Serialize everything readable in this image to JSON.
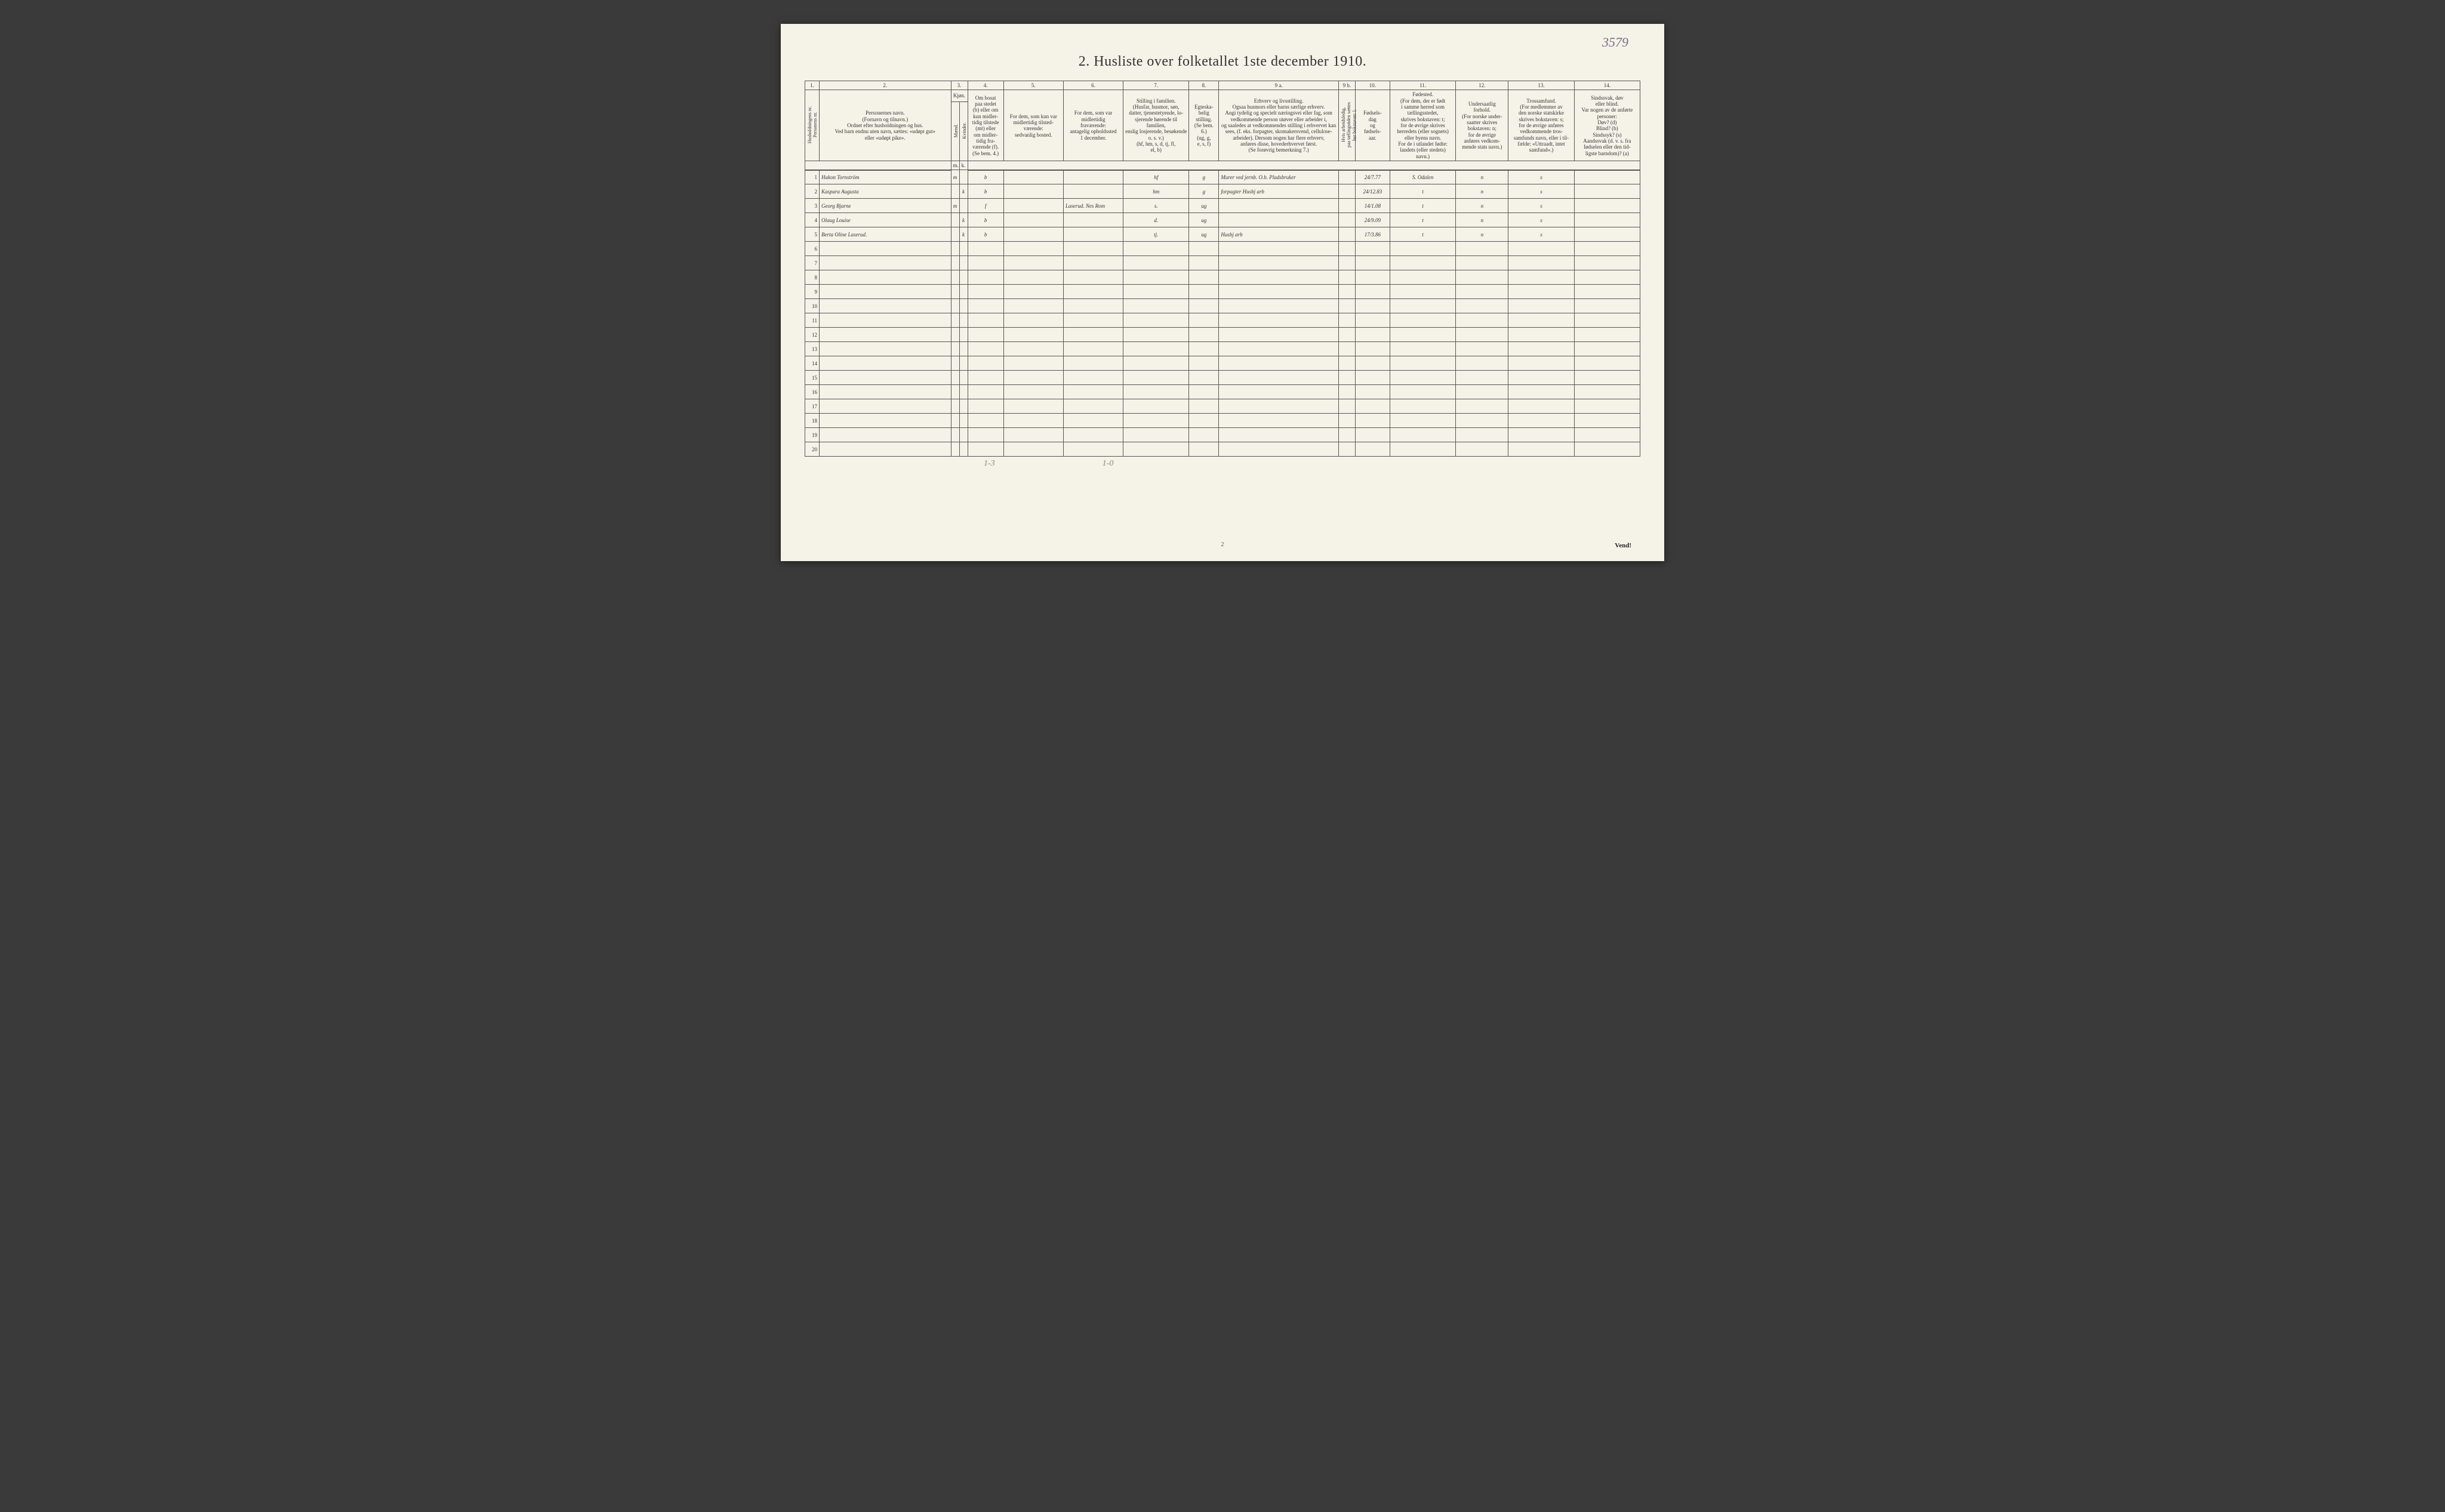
{
  "corner_note": "3579",
  "title": "2.  Husliste over folketallet 1ste december 1910.",
  "col_numbers": [
    "1.",
    "2.",
    "3.",
    "4.",
    "5.",
    "6.",
    "7.",
    "8.",
    "9 a.",
    "9 b.",
    "10.",
    "11.",
    "12.",
    "13.",
    "14."
  ],
  "headers": {
    "c1": "Husholdningens nr.\nPersonens nr.",
    "c2": "Personernes navn.\n(Fornavn og tilnavn.)\nOrdnet efter husholdningen og hus.\nVed barn endnu uten navn, sættes: «udøpt gut»\neller «udøpt pike».",
    "c3": "Kjøn.",
    "c3a": "Mænd.",
    "c3b": "Kvinder.",
    "c4": "Om bosat\npaa stedet\n(b) eller om\nkun midler-\ntidig tilstede\n(mt) eller\nom midler-\ntidig fra-\nværende (f).\n(Se bem. 4.)",
    "c5": "For dem, som kun var\nmidlertidig tilsted-\nværende:\nsedvanlig bosted.",
    "c6": "For dem, som var\nmidlertidig\nfraværende:\nantagelig opholdssted\n1 december.",
    "c7": "Stilling i familien.\n(Husfar, husmor, søn,\ndatter, tjenestetyende, lo-\nsjerende hørende til familien,\nenslig losjerende, besøkende\no. s. v.)\n(hf, hm, s, d, tj, fl,\nel, b)",
    "c8": "Egteska-\nbelig\nstilling.\n(Se bem. 6.)\n(ug, g,\ne, s, f)",
    "c9a": "Erhverv og livsstilling.\nOgsaa husmors eller barns særlige erhverv.\nAngi tydelig og specielt næringsvei eller fag, som\nvedkommende person utøver eller arbeider i,\nog saaledes at vedkommendes stilling i erhvervet kan\nsees, (f. eks. forpagter, skomakersvend, cellulose-\narbeider). Dersom nogen har flere erhverv,\nanføres disse, hovederhvervet først.\n(Se forøvrig bemerkning 7.)",
    "c9b": "Hvis arbeidsledig,\npaa tællingstiden sættes\nher bokstaven: l.",
    "c10": "Fødsels-\ndag\nog\nfødsels-\naar.",
    "c11": "Fødested.\n(For dem, der er født\ni samme herred som\ntællingsstedet,\nskrives bokstaven: t;\nfor de øvrige skrives\nherredets (eller sognets)\neller byens navn.\nFor de i utlandet fødte:\nlandets (eller stedets)\nnavn.)",
    "c12": "Undersaatlig\nforhold.\n(For norske under-\nsaatter skrives\nbokstaven: n;\nfor de øvrige\nanføres vedkom-\nmende stats navn.)",
    "c13": "Trossamfund.\n(For medlemmer av\nden norske statskirke\nskrives bokstaven: s;\nfor de øvrige anføres\nvedkommende tros-\nsamfunds navn, eller i til-\nfælde: «Uttraadt, intet\nsamfund».)",
    "c14": "Sindssvak, døv\neller blind.\nVar nogen av de anførte\npersoner:\nDøv?        (d)\nBlind?      (b)\nSindssyk?  (s)\nAandssvak (d. v. s. fra\nfødselen eller den tid-\nligste barndom)? (a)"
  },
  "sub_mk": {
    "m": "m.",
    "k": "k."
  },
  "rows": [
    {
      "n": "1",
      "name": "Hakon Tornström",
      "m": "m",
      "k": "",
      "res": "b",
      "c5": "",
      "c6": "",
      "fam": "hf",
      "eg": "g",
      "erh": "Murer ved jernb. O.b. Pladsbruker",
      "c9b": "",
      "dob": "24/7.77",
      "bp": "S. Odalen",
      "und": "n",
      "tro": "s",
      "c14": ""
    },
    {
      "n": "2",
      "name": "Kaspara Augusta",
      "m": "",
      "k": "k",
      "res": "b",
      "c5": "",
      "c6": "",
      "fam": "hm",
      "eg": "g",
      "erh": "forpagter Husbj arb",
      "c9b": "",
      "dob": "24/12.83",
      "bp": "t",
      "und": "n",
      "tro": "s",
      "c14": ""
    },
    {
      "n": "3",
      "name": "Georg Bjarne",
      "m": "m",
      "k": "",
      "res": "f",
      "c5": "",
      "c6": "Laserud. Nes Rom",
      "fam": "s.",
      "eg": "ug",
      "erh": "",
      "c9b": "",
      "dob": "14/1.08",
      "bp": "t",
      "und": "n",
      "tro": "s",
      "c14": ""
    },
    {
      "n": "4",
      "name": "Olaug Louise",
      "m": "",
      "k": "k",
      "res": "b",
      "c5": "",
      "c6": "",
      "fam": "d.",
      "eg": "ug",
      "erh": "",
      "c9b": "",
      "dob": "24/9.09",
      "bp": "t",
      "und": "n",
      "tro": "s",
      "c14": ""
    },
    {
      "n": "5",
      "name": "Berta Oline Laserud.",
      "m": "",
      "k": "k",
      "res": "b",
      "c5": "",
      "c6": "",
      "fam": "tj.",
      "eg": "ug",
      "erh": "Husbj arb",
      "c9b": "",
      "dob": "17/3.86",
      "bp": "t",
      "und": "n",
      "tro": "s",
      "c14": ""
    },
    {
      "n": "6"
    },
    {
      "n": "7"
    },
    {
      "n": "8"
    },
    {
      "n": "9"
    },
    {
      "n": "10"
    },
    {
      "n": "11"
    },
    {
      "n": "12"
    },
    {
      "n": "13"
    },
    {
      "n": "14"
    },
    {
      "n": "15"
    },
    {
      "n": "16"
    },
    {
      "n": "17"
    },
    {
      "n": "18"
    },
    {
      "n": "19"
    },
    {
      "n": "20"
    }
  ],
  "footer": {
    "left": "1-3",
    "mid": "1-0"
  },
  "page_num": "2",
  "vend": "Vend!",
  "widths": {
    "c1": "24px",
    "c2": "220px",
    "c3m": "14px",
    "c3k": "14px",
    "c4": "60px",
    "c5": "100px",
    "c6": "100px",
    "c7": "110px",
    "c8": "50px",
    "c9a": "200px",
    "c9b": "28px",
    "c10": "58px",
    "c11": "110px",
    "c12": "88px",
    "c13": "110px",
    "c14": "110px"
  },
  "colors": {
    "paper": "#f5f2e8",
    "ink": "#333",
    "hand": "#2a2a2a",
    "border": "#555",
    "pencil": "#888"
  }
}
